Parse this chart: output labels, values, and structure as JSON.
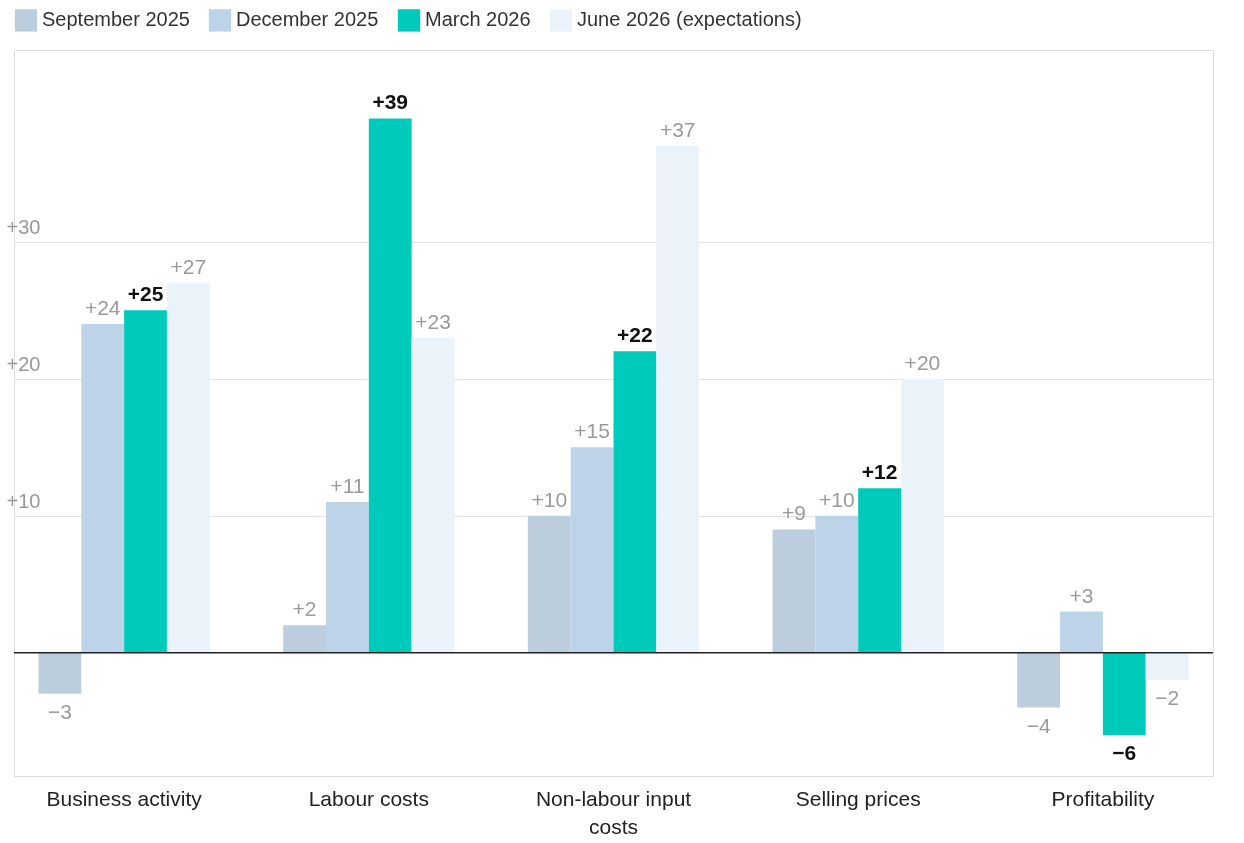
{
  "chart_data": {
    "type": "bar",
    "categories": [
      "Business activity",
      "Labour costs",
      "Non-labour input costs",
      "Selling prices",
      "Profitability"
    ],
    "series": [
      {
        "name": "September 2025",
        "color": "#bccedd",
        "values": [
          -3,
          2,
          10,
          9,
          -4
        ],
        "value_labels": [
          "−3",
          "+2",
          "+10",
          "+9",
          "−4"
        ]
      },
      {
        "name": "December 2025",
        "color": "#bdd4e8",
        "values": [
          24,
          11,
          15,
          10,
          3
        ],
        "value_labels": [
          "+24",
          "+11",
          "+15",
          "+10",
          "+3"
        ]
      },
      {
        "name": "March 2026",
        "color": "#00cbbb",
        "values": [
          25,
          39,
          22,
          12,
          -6
        ],
        "value_labels": [
          "+25",
          "+39",
          "+22",
          "+12",
          "−6"
        ]
      },
      {
        "name": "June 2026 (expectations)",
        "color": "#eaf2fa",
        "values": [
          27,
          23,
          37,
          20,
          -2
        ],
        "value_labels": [
          "+27",
          "+23",
          "+37",
          "+20",
          "−2"
        ]
      }
    ],
    "ylim": [
      -9,
      44
    ],
    "yticks": [
      {
        "value": 10,
        "label": "+10"
      },
      {
        "value": 20,
        "label": "+20"
      },
      {
        "value": 30,
        "label": "+30"
      }
    ],
    "grid": "y",
    "legend": "top left",
    "ref_lines": [
      {
        "axis": "y",
        "value": 0,
        "color": "#222222"
      }
    ]
  }
}
